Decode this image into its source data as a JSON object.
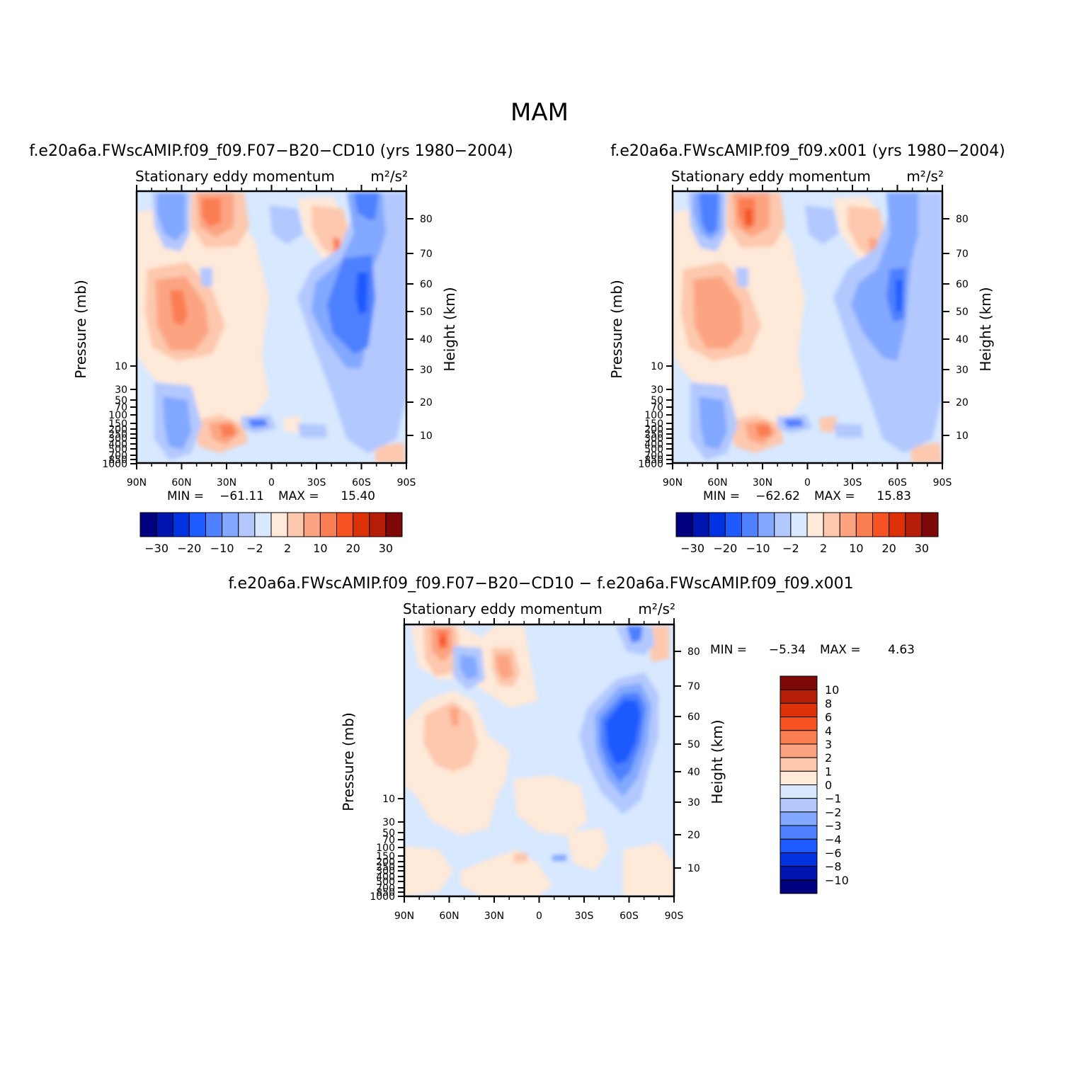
{
  "figure": {
    "title": "MAM"
  },
  "common": {
    "subtitle": "Stationary eddy momentum",
    "units": "m²/s²",
    "xlabel": "",
    "ylabel_left": "Pressure (mb)",
    "ylabel_right": "Height (km)",
    "x_ticks": [
      "90N",
      "60N",
      "30N",
      "0",
      "30S",
      "60S",
      "90S"
    ],
    "pressure_ticks": [
      "10",
      "30",
      "50",
      "70",
      "100",
      "150",
      "200",
      "250",
      "300",
      "400",
      "500",
      "700",
      "850",
      "1000"
    ],
    "height_ticks": [
      "10",
      "20",
      "30",
      "40",
      "50",
      "60",
      "70",
      "80"
    ]
  },
  "colorscale": {
    "colors": [
      "#000080",
      "#0015b0",
      "#0032e0",
      "#1d5aff",
      "#4e80ff",
      "#82a8ff",
      "#b2c8ff",
      "#d7e8ff",
      "#ffe9d8",
      "#fdc8ad",
      "#fca482",
      "#fb7e52",
      "#f65222",
      "#dc3109",
      "#b51d07",
      "#7e0707"
    ],
    "panel_tick_labels": [
      "−30",
      "−20",
      "−10",
      "−2",
      "2",
      "10",
      "20",
      "30"
    ],
    "diff_levels": [
      "10",
      "8",
      "6",
      "4",
      "3",
      "2",
      "1",
      "0",
      "−1",
      "−2",
      "−3",
      "−4",
      "−6",
      "−8",
      "−10"
    ]
  },
  "chart_data": [
    {
      "type": "heatmap",
      "title": "f.e20a6a.FWscAMIP.f09_f09.F07−B20−CD10 (yrs 1980−2004)",
      "subtitle": "Stationary eddy momentum",
      "units": "m²/s²",
      "xlim": [
        "90N",
        "90S"
      ],
      "ylabel": "Pressure (mb)",
      "y2label": "Height (km)",
      "min_label": "MIN =",
      "min_value": "−61.11",
      "max_label": "MAX =",
      "max_value": "15.40",
      "min": -61.11,
      "max": 15.4
    },
    {
      "type": "heatmap",
      "title": "f.e20a6a.FWscAMIP.f09_f09.x001 (yrs 1980−2004)",
      "subtitle": "Stationary eddy momentum",
      "units": "m²/s²",
      "xlim": [
        "90N",
        "90S"
      ],
      "ylabel": "Pressure (mb)",
      "y2label": "Height (km)",
      "min_label": "MIN =",
      "min_value": "−62.62",
      "max_label": "MAX =",
      "max_value": "15.83",
      "min": -62.62,
      "max": 15.83
    },
    {
      "type": "heatmap",
      "title": "f.e20a6a.FWscAMIP.f09_f09.F07−B20−CD10 − f.e20a6a.FWscAMIP.f09_f09.x001",
      "subtitle": "Stationary eddy momentum",
      "units": "m²/s²",
      "xlim": [
        "90N",
        "90S"
      ],
      "ylabel": "Pressure (mb)",
      "y2label": "Height (km)",
      "min_label": "MIN =",
      "min_value": "−5.34",
      "max_label": "MAX =",
      "max_value": "4.63",
      "min": -5.34,
      "max": 4.63
    }
  ]
}
